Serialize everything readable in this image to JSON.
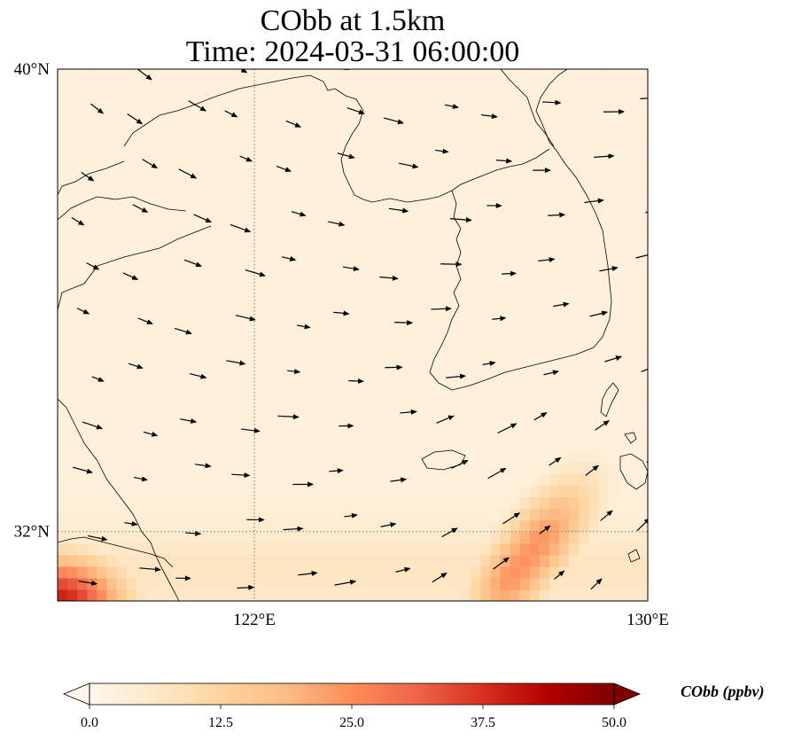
{
  "title": {
    "line1": "CObb at 1.5km",
    "line2": "Time: 2024-03-31 06:00:00"
  },
  "chart_data": {
    "type": "heatmap",
    "variable": "CObb",
    "level": "1.5km",
    "time": "2024-03-31 06:00:00",
    "units": "ppbv",
    "xlim": [
      118,
      130
    ],
    "ylim": [
      30.8,
      40
    ],
    "x_ticks": [
      {
        "value": 122,
        "label": "122°E"
      },
      {
        "value": 130,
        "label": "130°E"
      }
    ],
    "y_ticks": [
      {
        "value": 40,
        "label": "40°N"
      },
      {
        "value": 32,
        "label": "32°N"
      }
    ],
    "grid": "dotted lines at 122°E and 32°N",
    "background_value_ppbv": 3,
    "plumes": [
      {
        "description": "southwest corner",
        "lon_range": [
          118,
          120
        ],
        "lat_range": [
          30.8,
          31.6
        ],
        "peak_ppbv": 40
      },
      {
        "description": "band east of Korea Strait towards Kyushu",
        "lon_range": [
          125,
          130
        ],
        "lat_range": [
          30.8,
          34.5
        ],
        "peak_ppbv": 24
      }
    ],
    "wind_vectors": "northwesterly to westerly flow across Yellow Sea, turning southwesterly over the southeast",
    "colorbar": {
      "label": "CObb (ppbv)",
      "min": 0,
      "max": 50,
      "ticks": [
        "0.0",
        "12.5",
        "25.0",
        "37.5",
        "50.0"
      ],
      "colormap": "OrRd",
      "colors": [
        "#fff7ec",
        "#fee8c8",
        "#fdd49e",
        "#fdbb84",
        "#fc8d59",
        "#ef6548",
        "#d7301f",
        "#b30000",
        "#7f0000"
      ],
      "extend": "both"
    }
  }
}
